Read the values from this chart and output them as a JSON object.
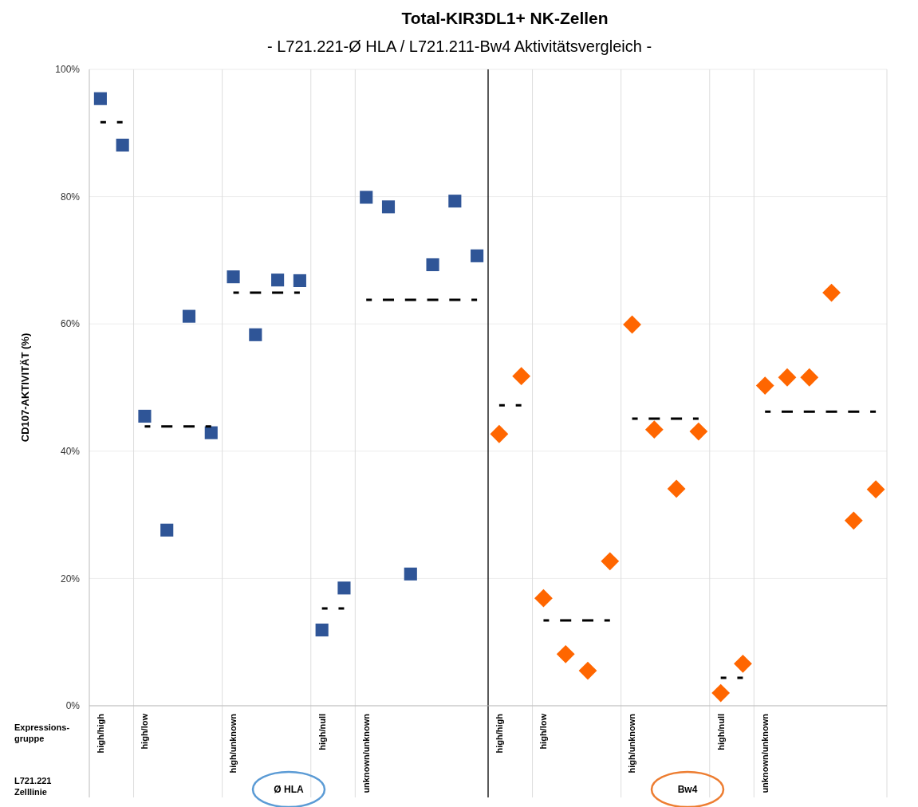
{
  "chart_data": {
    "type": "scatter",
    "title": "Total-KIR3DL1+ NK-Zellen",
    "subtitle": "- L721.221-Ø HLA / L721.211-Bw4 Aktivitätsvergleich -",
    "ylabel": "CD107-AKTIVITÄT (%)",
    "categories": [
      "high/high",
      null,
      "high/low",
      null,
      null,
      null,
      "high/unknown",
      null,
      null,
      null,
      "high/null",
      null,
      "unknown/unknown",
      null,
      null,
      null,
      null,
      null,
      "high/high",
      null,
      "high/low",
      null,
      null,
      null,
      "high/unknown",
      null,
      null,
      null,
      "high/null",
      null,
      "unknown/unknown",
      null,
      null,
      null,
      null,
      null
    ],
    "ylim": [
      0,
      100
    ],
    "yticks": [
      {
        "value": 0,
        "label": "0%"
      },
      {
        "value": 20,
        "label": "20%"
      },
      {
        "value": 40,
        "label": "40%"
      },
      {
        "value": 60,
        "label": "60%"
      },
      {
        "value": 80,
        "label": "80%"
      },
      {
        "value": 100,
        "label": "100%"
      }
    ],
    "grid": "y",
    "annotations": [
      "Expressions-gruppe",
      "L721.221 Zelllinie",
      "Ø HLA",
      "Bw4"
    ],
    "series": [
      {
        "marker": "square",
        "color": "#2f5597",
        "values": [
          95.4,
          88.1,
          45.5,
          27.6,
          61.2,
          42.9,
          67.4,
          58.3,
          66.9,
          66.8,
          11.9,
          18.5,
          79.9,
          78.4,
          20.7,
          69.3,
          79.3,
          70.7,
          null,
          null,
          null,
          null,
          null,
          null,
          null,
          null,
          null,
          null,
          null,
          null,
          null,
          null,
          null,
          null,
          null,
          null
        ]
      },
      {
        "marker": "diamond",
        "color": "#ff6600",
        "values": [
          null,
          null,
          null,
          null,
          null,
          null,
          null,
          null,
          null,
          null,
          null,
          null,
          null,
          null,
          null,
          null,
          null,
          null,
          42.7,
          51.8,
          16.9,
          8.1,
          5.5,
          22.7,
          59.9,
          43.4,
          34.1,
          43.1,
          2.0,
          6.6,
          50.3,
          51.6,
          51.6,
          64.9,
          29.1,
          34.0
        ]
      },
      {
        "type": "line",
        "line_style": "dashed",
        "marker": "none",
        "color": "#000000",
        "values": [
          91.7,
          91.7,
          null,
          null,
          null,
          null,
          null,
          null,
          null,
          null,
          null,
          null,
          null,
          null,
          null,
          null,
          null,
          null,
          null,
          null,
          null,
          null,
          null,
          null,
          null,
          null,
          null,
          null,
          null,
          null,
          null,
          null,
          null,
          null,
          null,
          null
        ]
      },
      {
        "type": "line",
        "line_style": "dashed",
        "marker": "none",
        "color": "#000000",
        "values": [
          null,
          null,
          43.9,
          43.9,
          43.9,
          43.9,
          null,
          null,
          null,
          null,
          null,
          null,
          null,
          null,
          null,
          null,
          null,
          null,
          null,
          null,
          null,
          null,
          null,
          null,
          null,
          null,
          null,
          null,
          null,
          null,
          null,
          null,
          null,
          null,
          null,
          null
        ]
      },
      {
        "type": "line",
        "line_style": "dashed",
        "marker": "none",
        "color": "#000000",
        "values": [
          null,
          null,
          null,
          null,
          null,
          null,
          64.9,
          64.9,
          64.9,
          64.9,
          null,
          null,
          null,
          null,
          null,
          null,
          null,
          null,
          null,
          null,
          null,
          null,
          null,
          null,
          null,
          null,
          null,
          null,
          null,
          null,
          null,
          null,
          null,
          null,
          null,
          null
        ]
      },
      {
        "type": "line",
        "line_style": "dashed",
        "marker": "none",
        "color": "#000000",
        "values": [
          null,
          null,
          null,
          null,
          null,
          null,
          null,
          null,
          null,
          null,
          15.3,
          15.3,
          null,
          null,
          null,
          null,
          null,
          null,
          null,
          null,
          null,
          null,
          null,
          null,
          null,
          null,
          null,
          null,
          null,
          null,
          null,
          null,
          null,
          null,
          null,
          null
        ]
      },
      {
        "type": "line",
        "line_style": "dashed",
        "marker": "none",
        "color": "#000000",
        "values": [
          null,
          null,
          null,
          null,
          null,
          null,
          null,
          null,
          null,
          null,
          null,
          null,
          63.8,
          63.8,
          63.8,
          63.8,
          63.8,
          63.8,
          null,
          null,
          null,
          null,
          null,
          null,
          null,
          null,
          null,
          null,
          null,
          null,
          null,
          null,
          null,
          null,
          null,
          null
        ]
      },
      {
        "type": "line",
        "line_style": "dashed",
        "marker": "none",
        "color": "#000000",
        "values": [
          null,
          null,
          null,
          null,
          null,
          null,
          null,
          null,
          null,
          null,
          null,
          null,
          null,
          null,
          null,
          null,
          null,
          null,
          47.2,
          47.2,
          null,
          null,
          null,
          null,
          null,
          null,
          null,
          null,
          null,
          null,
          null,
          null,
          null,
          null,
          null,
          null
        ]
      },
      {
        "type": "line",
        "line_style": "dashed",
        "marker": "none",
        "color": "#000000",
        "values": [
          null,
          null,
          null,
          null,
          null,
          null,
          null,
          null,
          null,
          null,
          null,
          null,
          null,
          null,
          null,
          null,
          null,
          null,
          null,
          null,
          13.4,
          13.4,
          13.4,
          13.4,
          null,
          null,
          null,
          null,
          null,
          null,
          null,
          null,
          null,
          null,
          null,
          null
        ]
      },
      {
        "type": "line",
        "line_style": "dashed",
        "marker": "none",
        "color": "#000000",
        "values": [
          null,
          null,
          null,
          null,
          null,
          null,
          null,
          null,
          null,
          null,
          null,
          null,
          null,
          null,
          null,
          null,
          null,
          null,
          null,
          null,
          null,
          null,
          null,
          null,
          45.1,
          45.1,
          45.1,
          45.1,
          null,
          null,
          null,
          null,
          null,
          null,
          null,
          null
        ]
      },
      {
        "type": "line",
        "line_style": "dashed",
        "marker": "none",
        "color": "#000000",
        "values": [
          null,
          null,
          null,
          null,
          null,
          null,
          null,
          null,
          null,
          null,
          null,
          null,
          null,
          null,
          null,
          null,
          null,
          null,
          null,
          null,
          null,
          null,
          null,
          null,
          null,
          null,
          null,
          null,
          4.4,
          4.4,
          null,
          null,
          null,
          null,
          null,
          null
        ]
      },
      {
        "type": "line",
        "line_style": "dashed",
        "marker": "none",
        "color": "#000000",
        "values": [
          null,
          null,
          null,
          null,
          null,
          null,
          null,
          null,
          null,
          null,
          null,
          null,
          null,
          null,
          null,
          null,
          null,
          null,
          null,
          null,
          null,
          null,
          null,
          null,
          null,
          null,
          null,
          null,
          null,
          null,
          46.2,
          46.2,
          46.2,
          46.2,
          46.2,
          46.2
        ]
      }
    ]
  }
}
